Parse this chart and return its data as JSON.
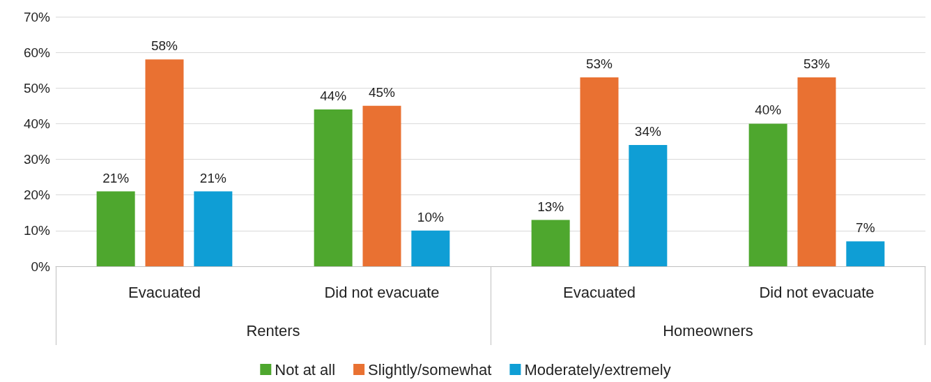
{
  "chart_data": {
    "type": "bar",
    "categories": [
      "Evacuated",
      "Did not evacuate",
      "Evacuated",
      "Did not evacuate"
    ],
    "series": [
      {
        "name": "Not at all",
        "color": "#4ea72e",
        "values": [
          21,
          44,
          13,
          40
        ],
        "value_labels": [
          "21%",
          "44%",
          "13%",
          "40%"
        ]
      },
      {
        "name": "Slightly/somewhat",
        "color": "#e97132",
        "values": [
          58,
          45,
          53,
          53
        ],
        "value_labels": [
          "58%",
          "45%",
          "53%",
          "53%"
        ]
      },
      {
        "name": "Moderately/extremely",
        "color": "#0f9ed5",
        "values": [
          21,
          10,
          34,
          7
        ],
        "value_labels": [
          "21%",
          "10%",
          "34%",
          "7%"
        ]
      }
    ],
    "annotations": [
      "Renters",
      "Homeowners"
    ],
    "ylim": [
      0,
      70
    ],
    "yticks": [
      {
        "value": 0,
        "label": "0%"
      },
      {
        "value": 10,
        "label": "10%"
      },
      {
        "value": 20,
        "label": "20%"
      },
      {
        "value": 30,
        "label": "30%"
      },
      {
        "value": 40,
        "label": "40%"
      },
      {
        "value": 50,
        "label": "50%"
      },
      {
        "value": 60,
        "label": "60%"
      },
      {
        "value": 70,
        "label": "70%"
      }
    ],
    "grid": "y",
    "legend": "bottom"
  }
}
